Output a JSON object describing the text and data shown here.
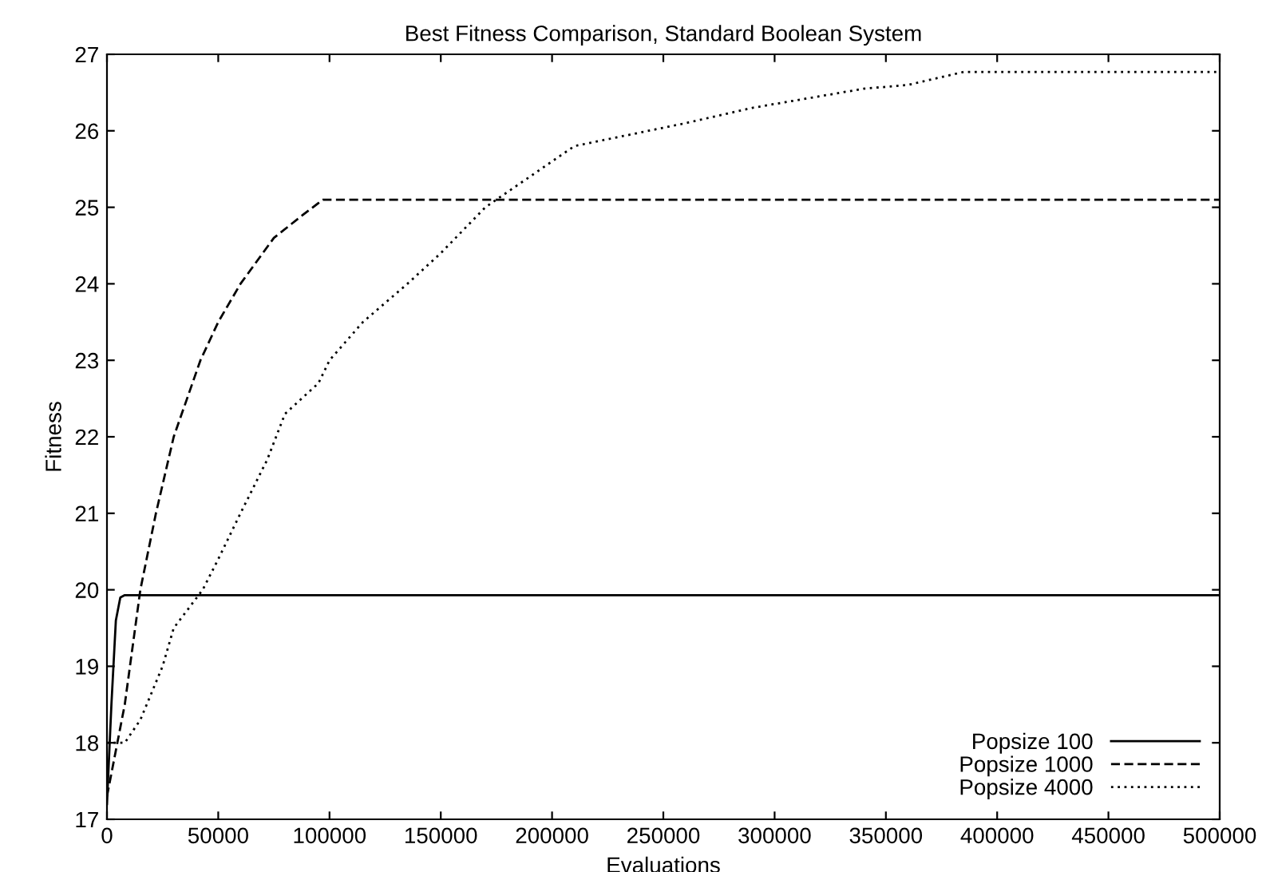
{
  "chart_data": {
    "type": "line",
    "title": "Best Fitness Comparison, Standard Boolean System",
    "xlabel": "Evaluations",
    "ylabel": "Fitness",
    "xlim": [
      0,
      500000
    ],
    "xticks": [
      0,
      50000,
      100000,
      150000,
      200000,
      250000,
      300000,
      350000,
      400000,
      450000,
      500000
    ],
    "ylim": [
      17,
      27
    ],
    "yticks": [
      17,
      18,
      19,
      20,
      21,
      22,
      23,
      24,
      25,
      26,
      27
    ],
    "grid": false,
    "legend": "bottom right",
    "series": [
      {
        "name": "Popsize 100",
        "color": "#000000",
        "line_style": "solid",
        "x": [
          0,
          2000,
          4000,
          6000,
          8000,
          500000
        ],
        "values": [
          17.2,
          18.5,
          19.6,
          19.9,
          19.93,
          19.93
        ]
      },
      {
        "name": "Popsize 1000",
        "color": "#000000",
        "line_style": "dashed",
        "x": [
          0,
          8000,
          15000,
          22000,
          30000,
          42000,
          50000,
          60000,
          75000,
          88000,
          97000,
          500000
        ],
        "values": [
          17.3,
          18.5,
          20.0,
          21.0,
          22.0,
          23.0,
          23.5,
          24.0,
          24.6,
          24.9,
          25.1,
          25.1
        ]
      },
      {
        "name": "Popsize 4000",
        "color": "#000000",
        "line_style": "dotted",
        "x": [
          0,
          8000,
          15000,
          25000,
          30000,
          43000,
          50000,
          60000,
          72000,
          80000,
          95000,
          100000,
          115000,
          135000,
          150000,
          170000,
          180000,
          195000,
          210000,
          235000,
          260000,
          290000,
          320000,
          340000,
          360000,
          385000,
          500000
        ],
        "values": [
          18.0,
          18.0,
          18.3,
          19.0,
          19.5,
          20.0,
          20.4,
          21.0,
          21.7,
          22.3,
          22.7,
          23.0,
          23.5,
          24.0,
          24.4,
          25.0,
          25.2,
          25.5,
          25.8,
          25.95,
          26.1,
          26.3,
          26.45,
          26.55,
          26.6,
          26.77,
          26.77
        ]
      }
    ]
  }
}
